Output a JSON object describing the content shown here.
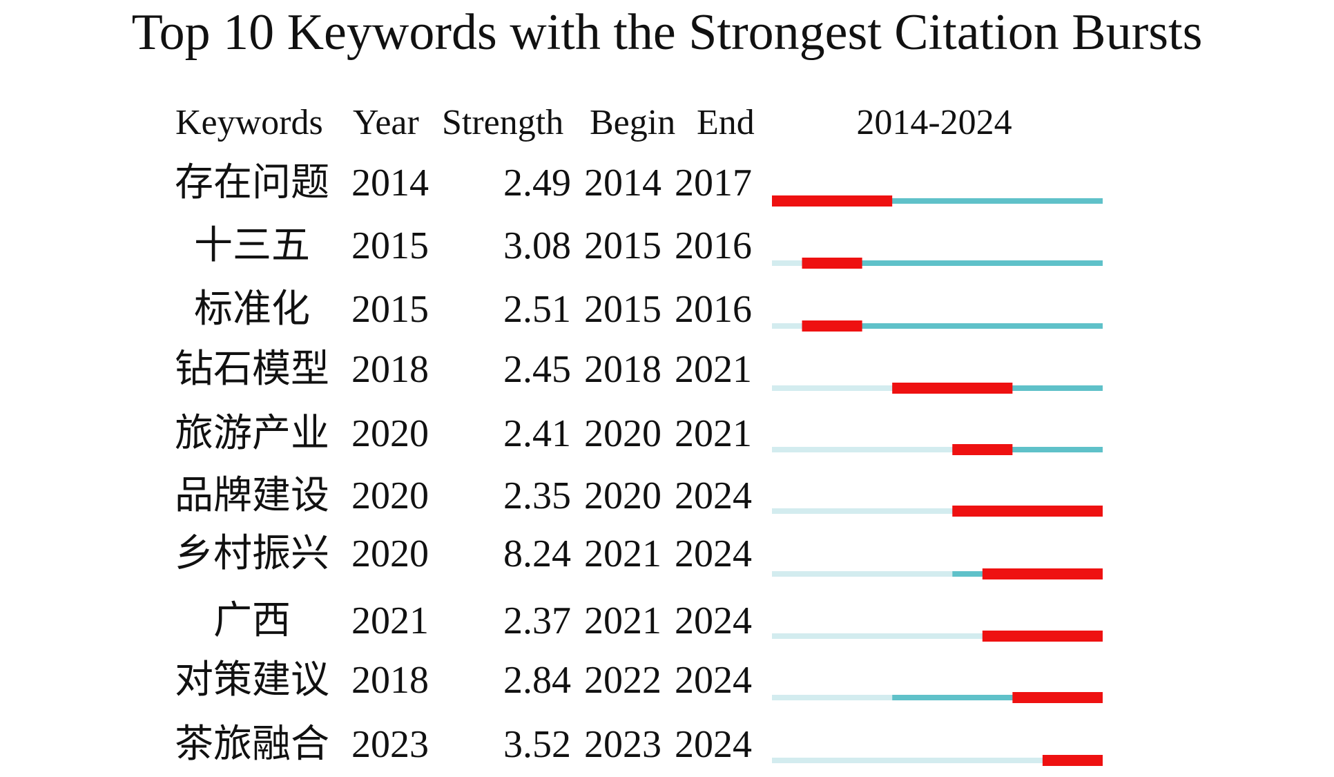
{
  "chart_data": {
    "type": "burst",
    "title": "Top 10 Keywords with the Strongest Citation Bursts",
    "columns": [
      "Keywords",
      "Year",
      "Strength",
      "Begin",
      "End"
    ],
    "timeline_label": "2014-2024",
    "xlim": [
      2014,
      2024
    ],
    "colors": {
      "before": "#d3ecef",
      "active": "#5fc1c9",
      "burst": "#ee1111"
    },
    "rows": [
      {
        "keyword": "存在问题",
        "year": 2014,
        "strength": 2.49,
        "begin": 2014,
        "end": 2017
      },
      {
        "keyword": "十三五",
        "year": 2015,
        "strength": 3.08,
        "begin": 2015,
        "end": 2016
      },
      {
        "keyword": "标准化",
        "year": 2015,
        "strength": 2.51,
        "begin": 2015,
        "end": 2016
      },
      {
        "keyword": "钻石模型",
        "year": 2018,
        "strength": 2.45,
        "begin": 2018,
        "end": 2021
      },
      {
        "keyword": "旅游产业",
        "year": 2020,
        "strength": 2.41,
        "begin": 2020,
        "end": 2021
      },
      {
        "keyword": "品牌建设",
        "year": 2020,
        "strength": 2.35,
        "begin": 2020,
        "end": 2024
      },
      {
        "keyword": "乡村振兴",
        "year": 2020,
        "strength": 8.24,
        "begin": 2021,
        "end": 2024
      },
      {
        "keyword": "广西",
        "year": 2021,
        "strength": 2.37,
        "begin": 2021,
        "end": 2024
      },
      {
        "keyword": "对策建议",
        "year": 2018,
        "strength": 2.84,
        "begin": 2022,
        "end": 2024
      },
      {
        "keyword": "茶旅融合",
        "year": 2023,
        "strength": 3.52,
        "begin": 2023,
        "end": 2024
      }
    ]
  }
}
